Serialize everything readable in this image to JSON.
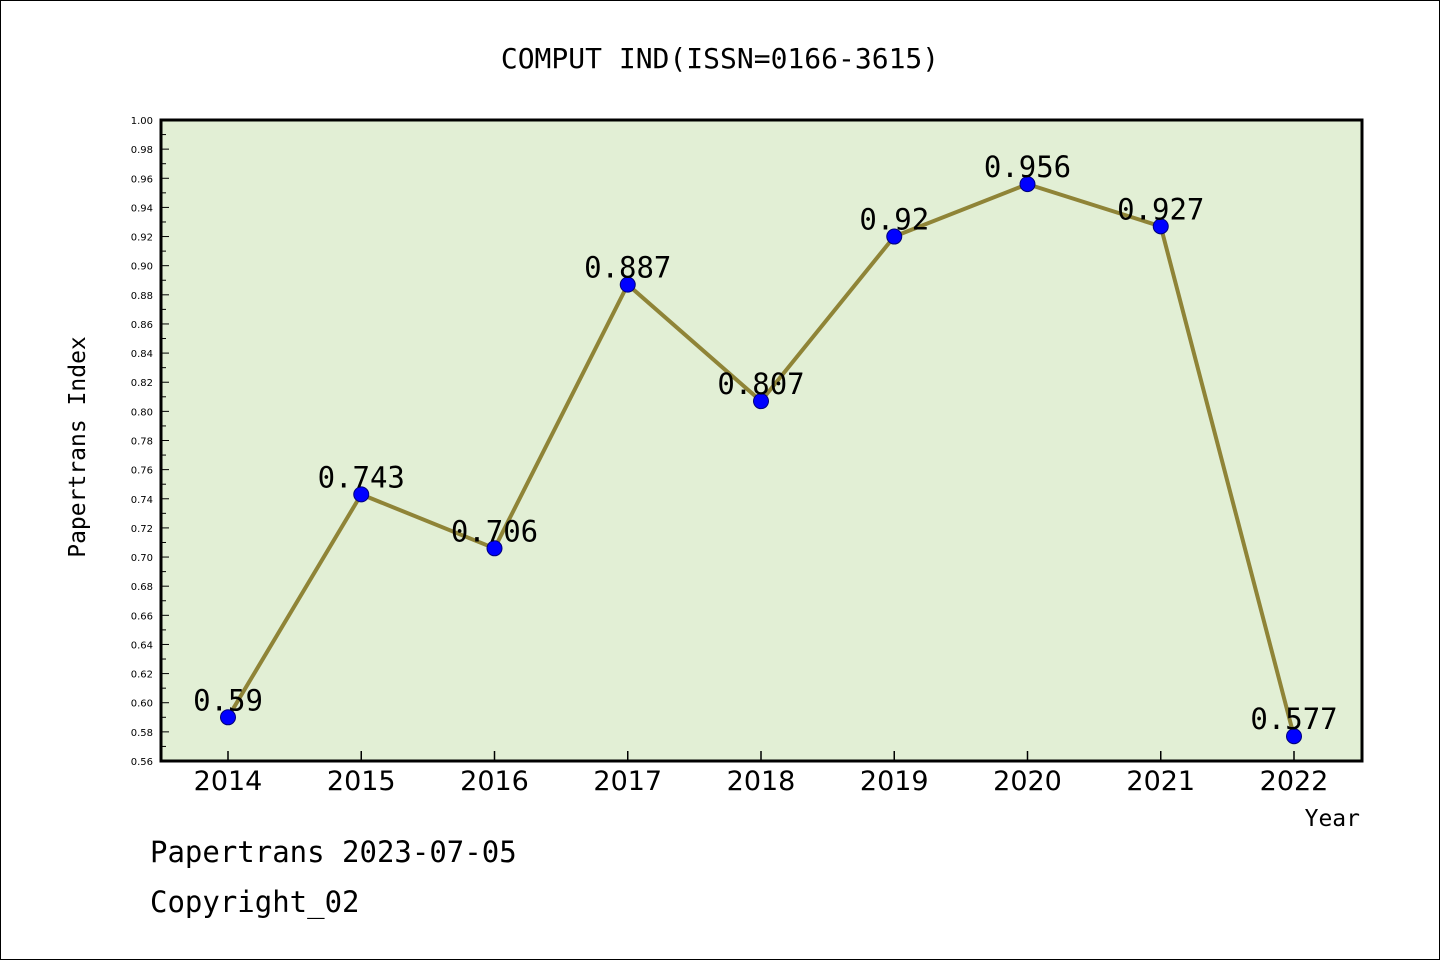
{
  "chart_data": {
    "type": "line",
    "title": "COMPUT IND(ISSN=0166-3615)",
    "xlabel": "Year",
    "ylabel": "Papertrans Index",
    "x": [
      "2014",
      "2015",
      "2016",
      "2017",
      "2018",
      "2019",
      "2020",
      "2021",
      "2022"
    ],
    "series": [
      {
        "values": [
          0.59,
          0.743,
          0.706,
          0.887,
          0.807,
          0.92,
          0.956,
          0.927,
          0.577
        ],
        "labels": [
          "0.59",
          "0.743",
          "0.706",
          "0.887",
          "0.807",
          "0.92",
          "0.956",
          "0.927",
          "0.577"
        ]
      }
    ],
    "ylim": [
      0.56,
      1.0
    ],
    "yticks": [
      "0.56",
      "0.58",
      "0.60",
      "0.62",
      "0.64",
      "0.66",
      "0.68",
      "0.70",
      "0.72",
      "0.74",
      "0.76",
      "0.78",
      "0.80",
      "0.82",
      "0.84",
      "0.86",
      "0.88",
      "0.90",
      "0.92",
      "0.94",
      "0.96",
      "0.98",
      "1.00"
    ],
    "grid": false,
    "legend": "none",
    "colors": {
      "plot_background": "#e2efd5",
      "line": "#8f8437",
      "marker": "#0000ff"
    }
  },
  "footer": {
    "watermark": "Papertrans 2023-07-05",
    "copyright": "Copyright_02"
  }
}
